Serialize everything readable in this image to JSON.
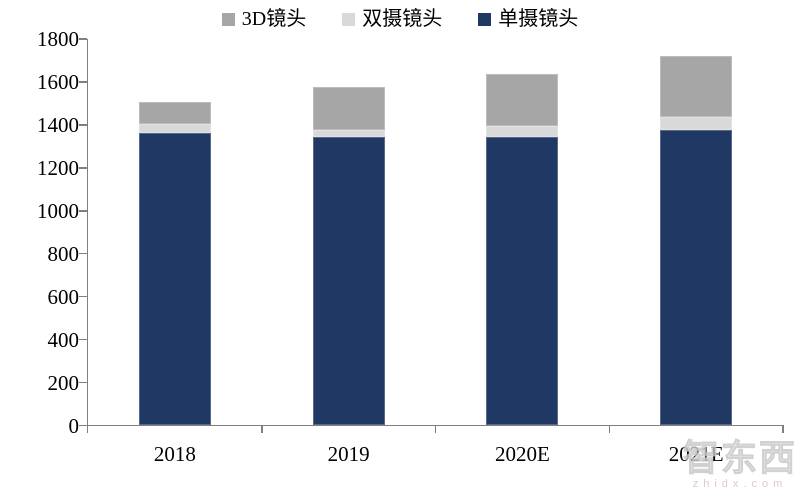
{
  "chart_data": {
    "type": "bar",
    "stacked": true,
    "title": "",
    "categories": [
      "2018",
      "2019",
      "2020E",
      "2021E"
    ],
    "series": [
      {
        "name": "单摄镜头",
        "color": "#1F3864",
        "values": [
          1360,
          1345,
          1345,
          1375
        ]
      },
      {
        "name": "双摄镜头",
        "color": "#D9D9D9",
        "values": [
          45,
          30,
          50,
          60
        ]
      },
      {
        "name": "3D镜头",
        "color": "#A6A6A6",
        "values": [
          100,
          200,
          240,
          285
        ]
      }
    ],
    "totals": [
      1505,
      1575,
      1635,
      1720
    ],
    "legend": [
      {
        "label": "3D镜头",
        "color": "#A6A6A6"
      },
      {
        "label": "双摄镜头",
        "color": "#D9D9D9"
      },
      {
        "label": "单摄镜头",
        "color": "#1F3864"
      }
    ],
    "legend_position": "top",
    "ylim": [
      0,
      1800
    ],
    "ytick_step": 200,
    "yticks": [
      0,
      200,
      400,
      600,
      800,
      1000,
      1200,
      1400,
      1600,
      1800
    ],
    "grid": false,
    "axis_color": "#7F7F7F",
    "label_color": "#000000"
  },
  "watermark": {
    "brand": "智东西",
    "domain": "zhidx.com"
  }
}
